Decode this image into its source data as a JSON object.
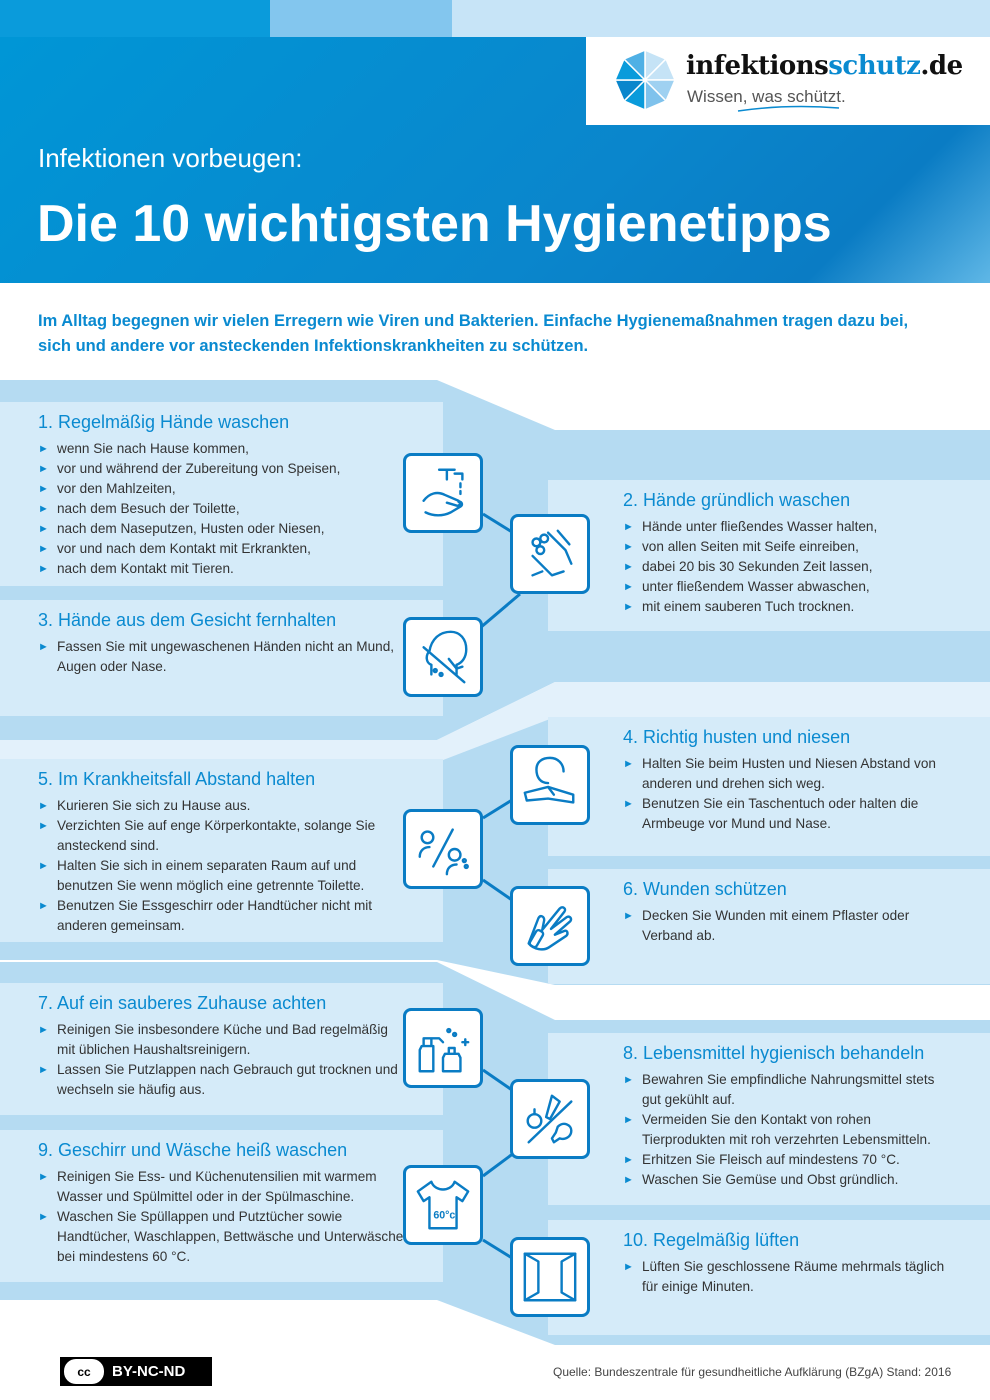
{
  "colors": {
    "primary": "#0a8ad0",
    "dark": "#0a7cc4",
    "panel": "#d5ebf9",
    "band": "#b5dbf2"
  },
  "logo": {
    "name_black": "infektions",
    "name_blue": "schutz",
    "name_suffix": ".de",
    "tagline": "Wissen, was schützt.",
    "icon": "umbrella-icon"
  },
  "header": {
    "subtitle": "Infektionen vorbeugen:",
    "title": "Die 10 wichtigsten Hygienetipps"
  },
  "intro": "Im Alltag begegnen wir vielen Erregern wie Viren und Bakterien. Einfache Hygienemaßnahmen tragen dazu bei, sich und andere vor ansteckenden Infektionskrankheiten zu schützen.",
  "tips": [
    {
      "title": "1. Regelmäßig Hände waschen",
      "icon": "faucet-hands-icon",
      "items": [
        "wenn Sie nach Hause kommen,",
        "vor und während der Zubereitung von Speisen,",
        "vor den Mahlzeiten,",
        "nach dem Besuch der Toilette,",
        "nach dem Naseputzen, Husten oder Niesen,",
        "vor und nach dem Kontakt mit Erkrankten,",
        "nach dem Kontakt mit Tieren."
      ]
    },
    {
      "title": "2. Hände gründlich waschen",
      "icon": "soapy-hands-icon",
      "items": [
        "Hände unter fließendes Wasser halten,",
        "von allen Seiten mit Seife einreiben,",
        "dabei 20 bis 30 Sekunden Zeit lassen,",
        "unter fließendem Wasser abwaschen,",
        "mit einem sauberen Tuch trocknen."
      ]
    },
    {
      "title": "3. Hände aus dem Gesicht fernhalten",
      "icon": "face-no-touch-icon",
      "items": [
        "Fassen Sie mit ungewaschenen Händen nicht an Mund, Augen oder Nase."
      ]
    },
    {
      "title": "4. Richtig husten und niesen",
      "icon": "cough-elbow-icon",
      "items": [
        "Halten Sie beim Husten und Niesen Abstand von anderen und drehen sich weg.",
        "Benutzen Sie  ein Taschentuch oder halten die Armbeuge vor Mund und Nase."
      ]
    },
    {
      "title": "5. Im Krankheitsfall Abstand halten",
      "icon": "distance-icon",
      "items": [
        "Kurieren Sie sich zu Hause aus.",
        "Verzichten Sie auf enge Körperkontakte, solange Sie ansteckend sind.",
        "Halten Sie sich in einem separaten Raum auf und benutzen Sie wenn möglich eine getrennte Toilette.",
        "Benutzen Sie Essgeschirr oder Handtücher nicht mit anderen gemeinsam."
      ]
    },
    {
      "title": "6. Wunden schützen",
      "icon": "bandaged-hand-icon",
      "items": [
        "Decken Sie Wunden mit einem Pflaster oder Verband ab."
      ]
    },
    {
      "title": "7. Auf ein sauberes Zuhause achten",
      "icon": "cleaning-spray-icon",
      "items": [
        "Reinigen Sie insbesondere Küche und Bad regelmäßig mit üblichen Haushaltsreinigern.",
        "Lassen Sie Putzlappen nach Gebrauch gut trocknen und wechseln sie häufig aus."
      ]
    },
    {
      "title": "8. Lebensmittel hygienisch behandeln",
      "icon": "food-separation-icon",
      "items": [
        "Bewahren Sie empfindliche Nahrungsmittel stets gut gekühlt auf.",
        "Vermeiden Sie den Kontakt von rohen Tierprodukten mit roh verzehrten Lebensmitteln.",
        "Erhitzen Sie Fleisch auf mindestens 70 °C.",
        "Waschen Sie Gemüse und Obst gründlich."
      ]
    },
    {
      "title": "9. Geschirr und Wäsche heiß waschen",
      "icon": "tshirt-60-icon",
      "icon_text": "60°c",
      "items": [
        "Reinigen Sie Ess- und Küchenutensilien mit warmem Wasser und Spülmittel oder in der Spülmaschine.",
        "Waschen Sie Spüllappen und Putztücher sowie Handtücher, Waschlappen, Bettwäsche und Unterwäsche bei mindestens 60 °C."
      ]
    },
    {
      "title": "10. Regelmäßig lüften",
      "icon": "open-window-icon",
      "items": [
        "Lüften Sie geschlossene Räume mehrmals täglich für einige Minuten."
      ]
    }
  ],
  "footer": {
    "license_cc": "cc",
    "license": "BY-NC-ND",
    "source": "Quelle: Bundeszentrale für gesundheitliche Aufklärung (BZgA) Stand: 2016"
  }
}
